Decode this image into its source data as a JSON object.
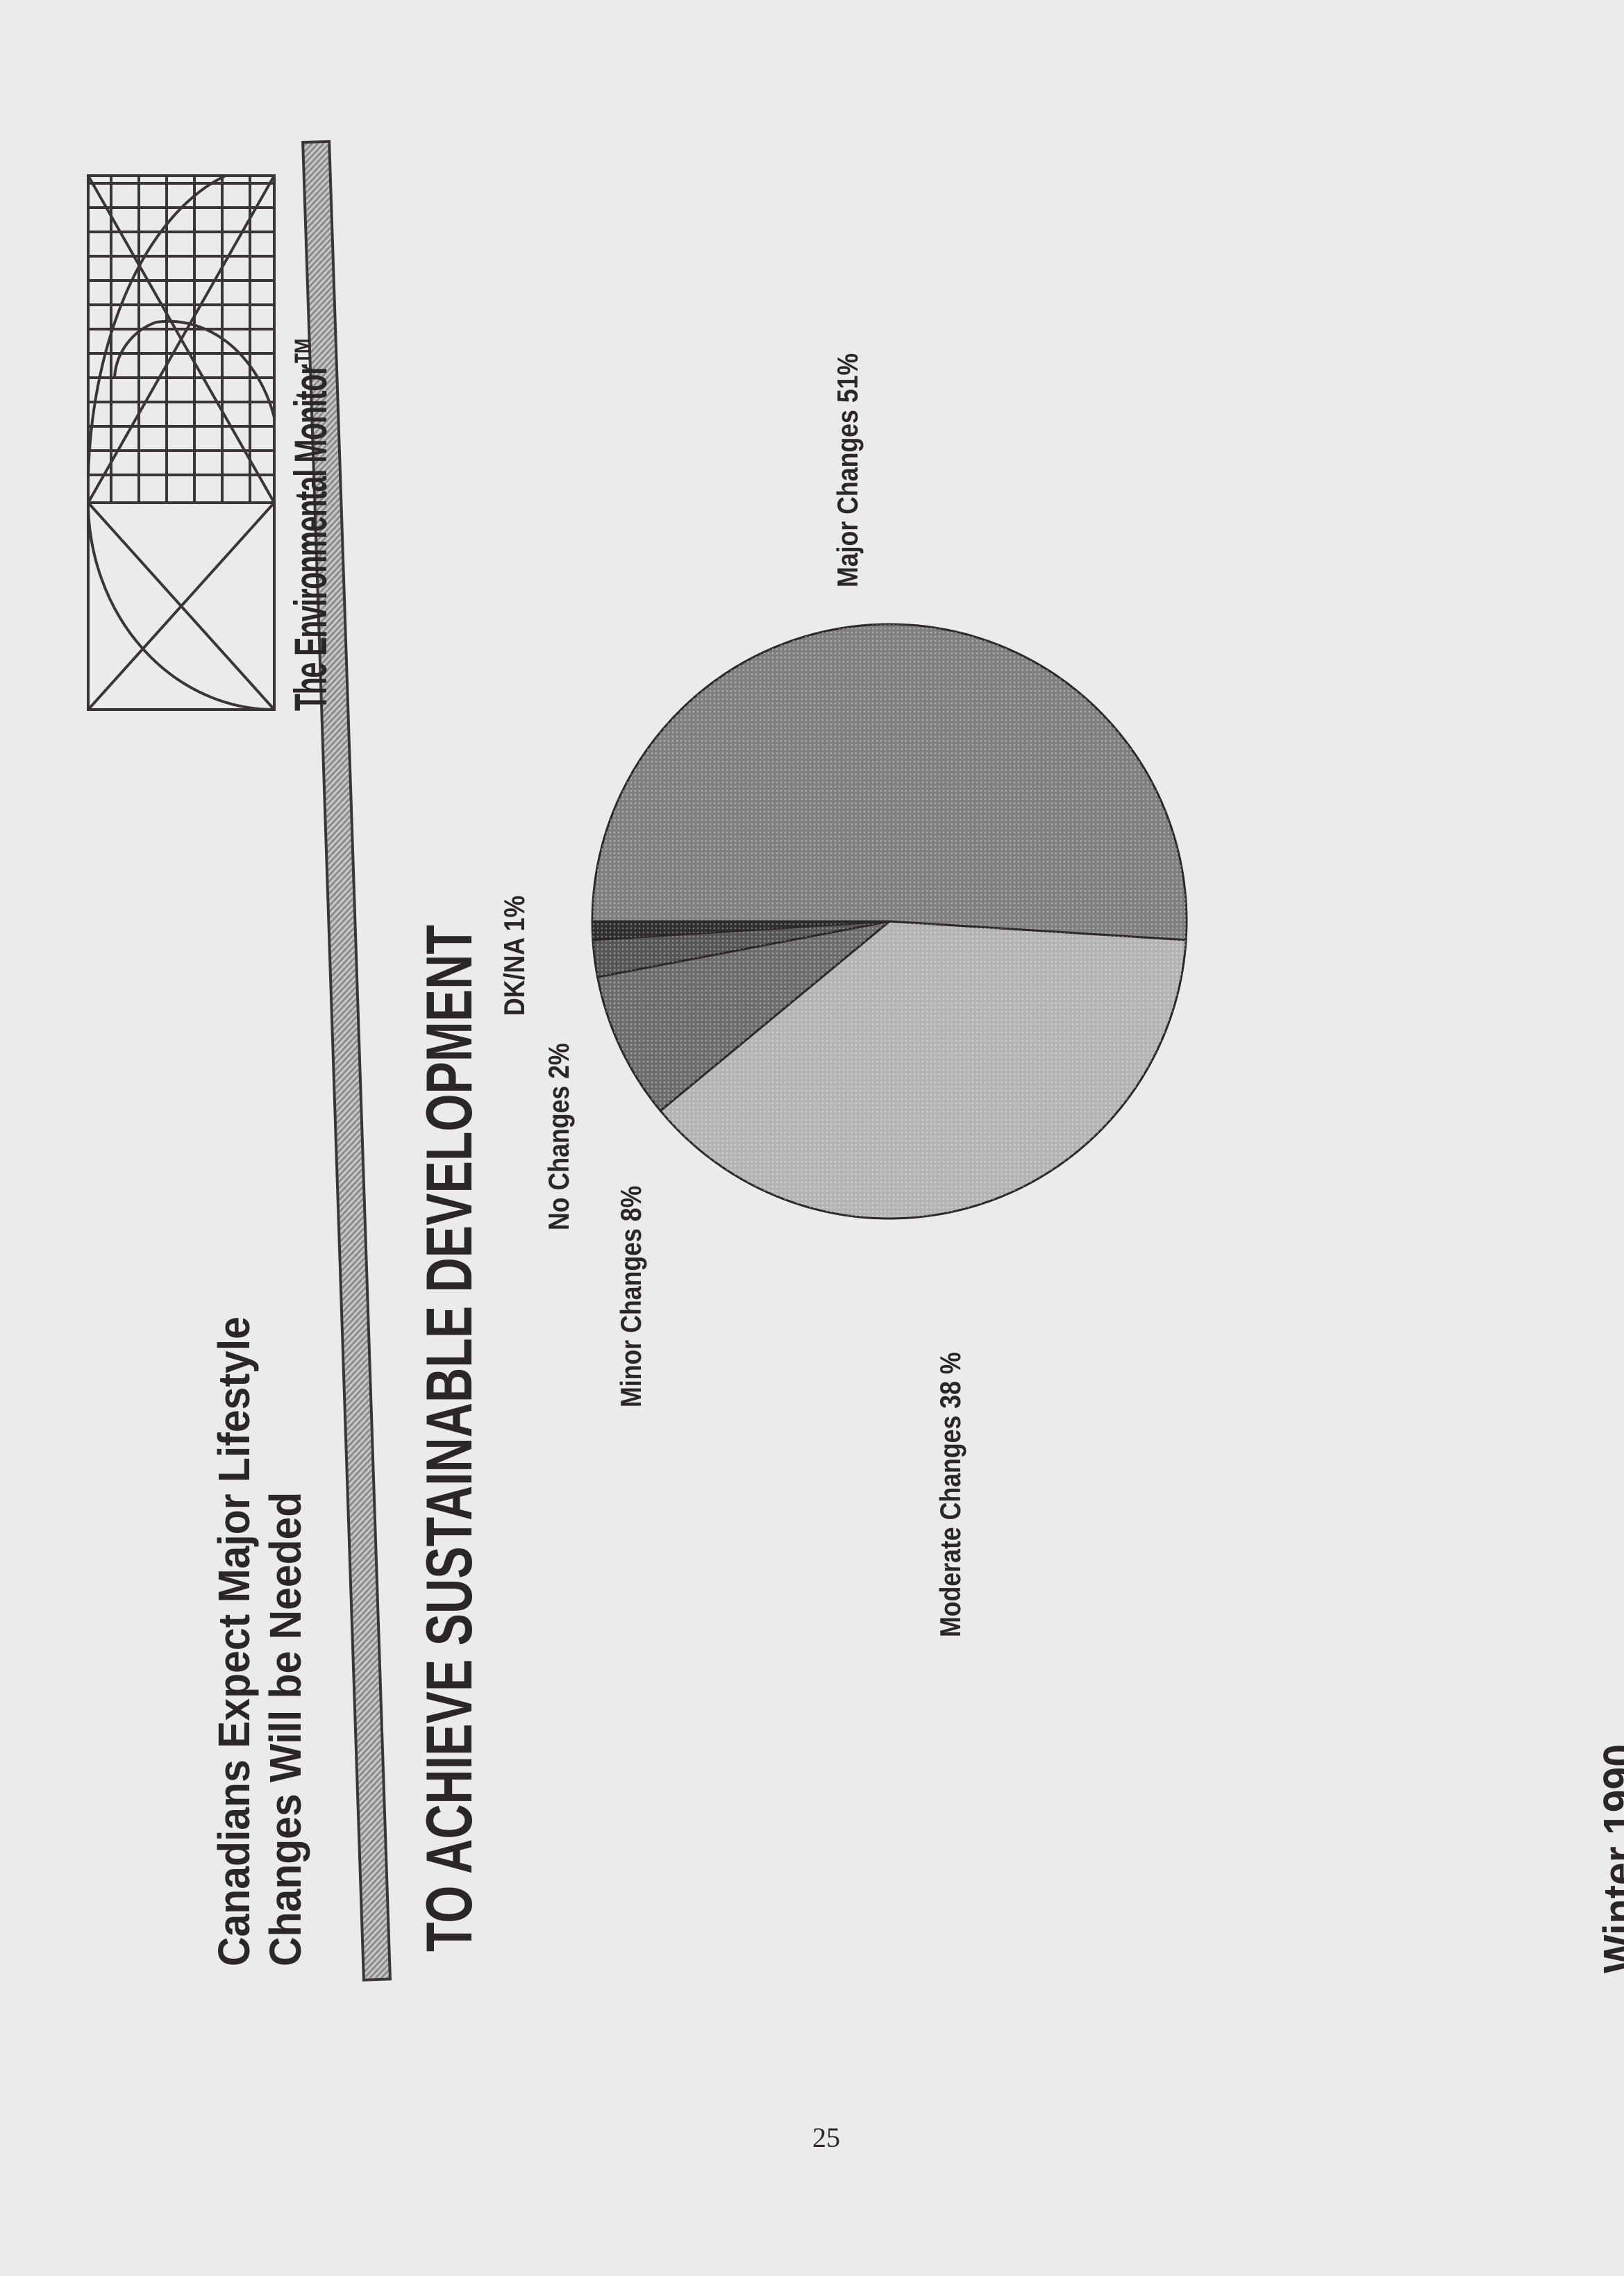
{
  "header": {
    "title_line1": "Canadians Expect Major Lifestyle",
    "title_line2": "Changes Will be Needed",
    "subtitle": "TO ACHIEVE SUSTAINABLE DEVELOPMENT",
    "brand": "The Environmental Monitor™",
    "logo_icon": "golden-spiral-grid-logo"
  },
  "footer": {
    "season": "Winter 1990",
    "page_number": "25"
  },
  "chart_data": {
    "type": "pie",
    "title": "TO ACHIEVE SUSTAINABLE DEVELOPMENT",
    "slices": [
      {
        "name": "Major Changes",
        "value": 51,
        "label": "Major Changes 51%",
        "color": "#7f7f7f"
      },
      {
        "name": "Moderate Changes",
        "value": 38,
        "label": "Moderate Changes 38 %",
        "color": "#b3b3b3"
      },
      {
        "name": "Minor Changes",
        "value": 8,
        "label": "Minor Changes 8%",
        "color": "#6c6c6c"
      },
      {
        "name": "No Changes",
        "value": 2,
        "label": "No Changes  2%",
        "color": "#555555"
      },
      {
        "name": "DK/NA",
        "value": 1,
        "label": "DK/NA 1%",
        "color": "#2e2e2e"
      }
    ],
    "legend": "none (direct labels)"
  }
}
